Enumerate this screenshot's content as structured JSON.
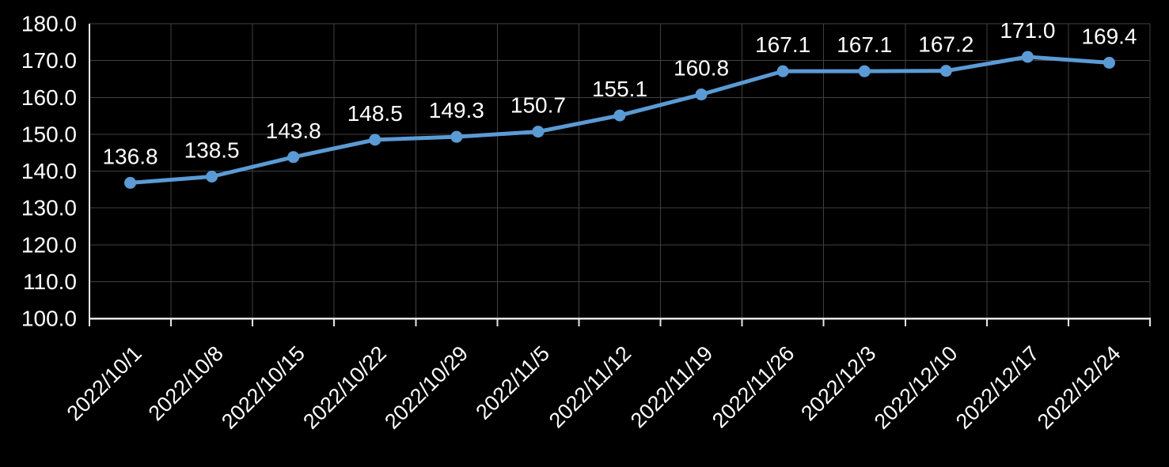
{
  "chart_data": {
    "type": "line",
    "title": "",
    "xlabel": "",
    "ylabel": "",
    "categories": [
      "2022/10/1",
      "2022/10/8",
      "2022/10/15",
      "2022/10/22",
      "2022/10/29",
      "2022/11/5",
      "2022/11/12",
      "2022/11/19",
      "2022/11/26",
      "2022/12/3",
      "2022/12/10",
      "2022/12/17",
      "2022/12/24"
    ],
    "series": [
      {
        "name": "value",
        "values": [
          136.8,
          138.5,
          143.8,
          148.5,
          149.3,
          150.7,
          155.1,
          160.8,
          167.1,
          167.1,
          167.2,
          171.0,
          169.4
        ],
        "data_labels": [
          "136.8",
          "138.5",
          "143.8",
          "148.5",
          "149.3",
          "150.7",
          "155.1",
          "160.8",
          "167.1",
          "167.1",
          "167.2",
          "171.0",
          "169.4"
        ],
        "marker": "circle"
      }
    ],
    "ylim": [
      100,
      180
    ],
    "ytick_step": 10,
    "ytick_labels": [
      "100.0",
      "110.0",
      "120.0",
      "130.0",
      "140.0",
      "150.0",
      "160.0",
      "170.0",
      "180.0"
    ],
    "grid": true,
    "legend_position": "none",
    "x_label_rotation_deg": -45,
    "colors": {
      "background": "#000000",
      "series_line": "#5B9BD5",
      "series_marker": "#5B9BD5",
      "gridline": "#404040",
      "axis_line": "#E6E6E6",
      "text": "#FFFFFF"
    }
  }
}
